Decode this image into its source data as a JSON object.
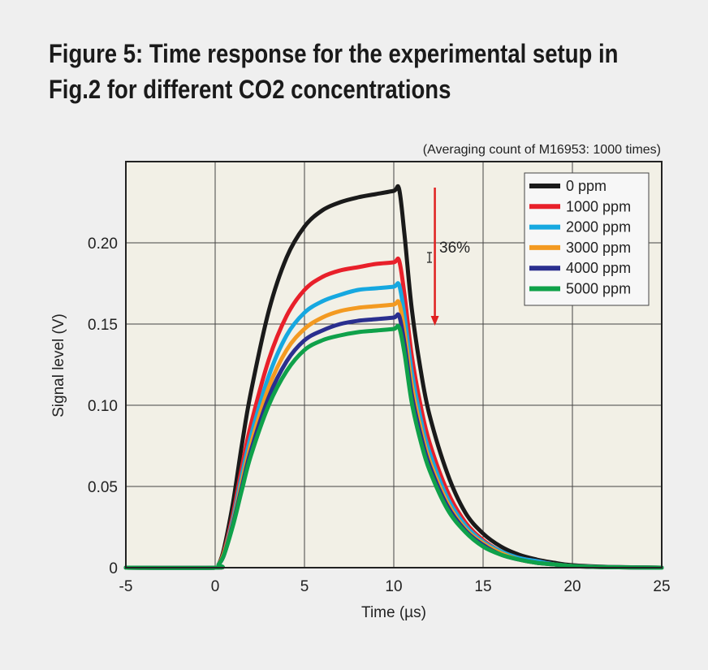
{
  "figure": {
    "title_line1": "Figure 5: Time response for the experimental setup in",
    "title_line2": "Fig.2 for different CO2 concentrations"
  },
  "chart_data": {
    "type": "line",
    "note": "(Averaging count of M16953: 1000 times)",
    "xlabel": "Time (µs)",
    "ylabel": "Signal level (V)",
    "xlim": [
      -5,
      25
    ],
    "ylim": [
      0,
      0.25
    ],
    "xticks": [
      -5,
      0,
      5,
      10,
      15,
      20,
      25
    ],
    "xtick_labels": [
      "-5",
      "0",
      "5",
      "10",
      "15",
      "20",
      "25"
    ],
    "yticks": [
      0,
      0.05,
      0.1,
      0.15,
      0.2
    ],
    "ytick_labels": [
      "0",
      "0.05",
      "0.10",
      "0.15",
      "0.20"
    ],
    "grid": true,
    "legend_position": "top-right",
    "colors": {
      "plot_bg": "#f2f0e6",
      "grid": "#444444",
      "arrow": "#e02020"
    },
    "annotation": {
      "text": "36%",
      "arrow_x": 12.3,
      "arrow_y_from": 0.234,
      "arrow_y_to": 0.149
    },
    "series": [
      {
        "name": "0 ppm",
        "color": "#1a1a1a",
        "peak": 0.233,
        "x": [
          -5,
          0,
          0.2,
          0.5,
          1,
          1.5,
          2,
          3,
          4,
          5,
          6,
          7,
          8,
          9,
          10,
          10.3,
          10.6,
          11,
          11.5,
          12,
          13,
          14,
          15,
          16,
          17,
          18,
          19,
          20,
          22,
          25
        ],
        "values": [
          0,
          0,
          0.002,
          0.012,
          0.04,
          0.076,
          0.108,
          0.158,
          0.191,
          0.21,
          0.22,
          0.225,
          0.228,
          0.23,
          0.232,
          0.233,
          0.205,
          0.16,
          0.122,
          0.094,
          0.058,
          0.034,
          0.021,
          0.013,
          0.008,
          0.005,
          0.003,
          0.0015,
          0.0005,
          0
        ]
      },
      {
        "name": "1000 ppm",
        "color": "#e8202a",
        "peak": 0.189,
        "x": [
          -5,
          0,
          0.2,
          0.5,
          1,
          1.5,
          2,
          3,
          4,
          5,
          6,
          7,
          8,
          9,
          10,
          10.3,
          10.6,
          11,
          11.5,
          12,
          13,
          14,
          15,
          16,
          17,
          18,
          19,
          20,
          22,
          25
        ],
        "values": [
          0,
          0,
          0.002,
          0.01,
          0.033,
          0.062,
          0.088,
          0.128,
          0.155,
          0.171,
          0.179,
          0.183,
          0.185,
          0.187,
          0.188,
          0.189,
          0.168,
          0.131,
          0.1,
          0.077,
          0.047,
          0.028,
          0.017,
          0.01,
          0.006,
          0.004,
          0.002,
          0.001,
          0.0004,
          0
        ]
      },
      {
        "name": "2000 ppm",
        "color": "#16a8e0",
        "peak": 0.174,
        "x": [
          -5,
          0,
          0.2,
          0.5,
          1,
          1.5,
          2,
          3,
          4,
          5,
          6,
          7,
          8,
          9,
          10,
          10.3,
          10.6,
          11,
          11.5,
          12,
          13,
          14,
          15,
          16,
          17,
          18,
          19,
          20,
          22,
          25
        ],
        "values": [
          0,
          0,
          0.002,
          0.009,
          0.03,
          0.057,
          0.081,
          0.118,
          0.143,
          0.157,
          0.164,
          0.168,
          0.171,
          0.172,
          0.173,
          0.174,
          0.155,
          0.121,
          0.092,
          0.071,
          0.043,
          0.026,
          0.016,
          0.01,
          0.006,
          0.004,
          0.002,
          0.001,
          0.0004,
          0
        ]
      },
      {
        "name": "3000 ppm",
        "color": "#f39a21",
        "peak": 0.163,
        "x": [
          -5,
          0,
          0.2,
          0.5,
          1,
          1.5,
          2,
          3,
          4,
          5,
          6,
          7,
          8,
          9,
          10,
          10.3,
          10.6,
          11,
          11.5,
          12,
          13,
          14,
          15,
          16,
          17,
          18,
          19,
          20,
          22,
          25
        ],
        "values": [
          0,
          0,
          0.002,
          0.009,
          0.028,
          0.053,
          0.076,
          0.111,
          0.134,
          0.147,
          0.154,
          0.158,
          0.16,
          0.161,
          0.162,
          0.163,
          0.145,
          0.113,
          0.086,
          0.066,
          0.04,
          0.024,
          0.015,
          0.009,
          0.005,
          0.003,
          0.002,
          0.001,
          0.0003,
          0
        ]
      },
      {
        "name": "4000 ppm",
        "color": "#2a2f8f",
        "peak": 0.155,
        "x": [
          -5,
          0,
          0.2,
          0.5,
          1,
          1.5,
          2,
          3,
          4,
          5,
          6,
          7,
          8,
          9,
          10,
          10.3,
          10.6,
          11,
          11.5,
          12,
          13,
          14,
          15,
          16,
          17,
          18,
          19,
          20,
          22,
          25
        ],
        "values": [
          0,
          0,
          0.002,
          0.008,
          0.027,
          0.05,
          0.072,
          0.105,
          0.127,
          0.14,
          0.146,
          0.15,
          0.152,
          0.153,
          0.154,
          0.155,
          0.138,
          0.107,
          0.082,
          0.063,
          0.038,
          0.023,
          0.014,
          0.008,
          0.005,
          0.003,
          0.002,
          0.001,
          0.0003,
          0
        ]
      },
      {
        "name": "5000 ppm",
        "color": "#0fa14a",
        "peak": 0.148,
        "x": [
          -5,
          0,
          0.2,
          0.5,
          1,
          1.5,
          2,
          3,
          4,
          5,
          6,
          7,
          8,
          9,
          10,
          10.3,
          10.6,
          11,
          11.5,
          12,
          13,
          14,
          15,
          16,
          17,
          18,
          19,
          20,
          22,
          25
        ],
        "values": [
          0,
          0,
          0.002,
          0.008,
          0.026,
          0.048,
          0.069,
          0.1,
          0.121,
          0.134,
          0.14,
          0.143,
          0.145,
          0.146,
          0.147,
          0.148,
          0.132,
          0.102,
          0.078,
          0.06,
          0.036,
          0.022,
          0.013,
          0.008,
          0.005,
          0.003,
          0.002,
          0.001,
          0.0003,
          0
        ]
      }
    ]
  }
}
